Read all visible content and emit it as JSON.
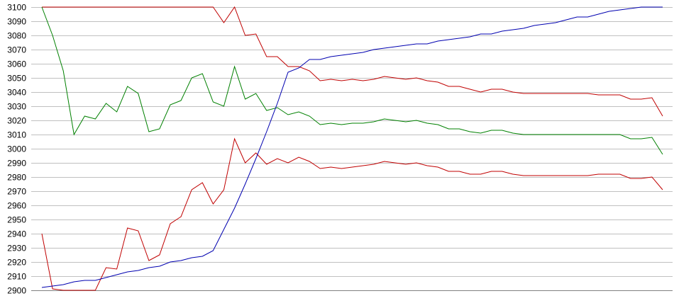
{
  "chart_data": {
    "type": "line",
    "title": "",
    "xlabel": "",
    "ylabel": "",
    "ylim": [
      2900,
      3100
    ],
    "yticks": [
      2900,
      2910,
      2920,
      2930,
      2940,
      2950,
      2960,
      2970,
      2980,
      2990,
      3000,
      3010,
      3020,
      3030,
      3040,
      3050,
      3060,
      3070,
      3080,
      3090,
      3100
    ],
    "grid": true,
    "legend": "none",
    "x": [
      0,
      1,
      2,
      3,
      4,
      5,
      6,
      7,
      8,
      9,
      10,
      11,
      12,
      13,
      14,
      15,
      16,
      17,
      18,
      19,
      20,
      21,
      22,
      23,
      24,
      25,
      26,
      27,
      28,
      29,
      30,
      31,
      32,
      33,
      34,
      35,
      36,
      37,
      38,
      39,
      40,
      41,
      42,
      43,
      44,
      45,
      46,
      47,
      48,
      49,
      50,
      51,
      52,
      53,
      54,
      55,
      56,
      57,
      58
    ],
    "series": [
      {
        "color": "#c00000",
        "values": [
          3100,
          3100,
          3100,
          3100,
          3100,
          3100,
          3100,
          3100,
          3100,
          3100,
          3100,
          3100,
          3100,
          3100,
          3100,
          3100,
          3100,
          3089,
          3100,
          3080,
          3081,
          3065,
          3065,
          3058,
          3058,
          3055,
          3048,
          3049,
          3048,
          3049,
          3048,
          3049,
          3051,
          3050,
          3049,
          3050,
          3048,
          3047,
          3044,
          3044,
          3042,
          3040,
          3042,
          3042,
          3040,
          3039,
          3039,
          3039,
          3039,
          3039,
          3039,
          3039,
          3038,
          3038,
          3038,
          3035,
          3035,
          3036,
          3023
        ]
      },
      {
        "color": "#008000",
        "values": [
          3100,
          3080,
          3055,
          3010,
          3023,
          3021,
          3032,
          3026,
          3044,
          3039,
          3012,
          3014,
          3031,
          3034,
          3050,
          3053,
          3033,
          3030,
          3058,
          3035,
          3039,
          3027,
          3029,
          3024,
          3026,
          3023,
          3017,
          3018,
          3017,
          3018,
          3018,
          3019,
          3021,
          3020,
          3019,
          3020,
          3018,
          3017,
          3014,
          3014,
          3012,
          3011,
          3013,
          3013,
          3011,
          3010,
          3010,
          3010,
          3010,
          3010,
          3010,
          3010,
          3010,
          3010,
          3010,
          3007,
          3007,
          3008,
          2996
        ]
      },
      {
        "color": "#c00000",
        "values": [
          2940,
          2901,
          2900,
          2900,
          2900,
          2900,
          2916,
          2915,
          2944,
          2942,
          2921,
          2925,
          2947,
          2952,
          2971,
          2976,
          2961,
          2971,
          3007,
          2990,
          2997,
          2989,
          2993,
          2990,
          2994,
          2991,
          2986,
          2987,
          2986,
          2987,
          2988,
          2989,
          2991,
          2990,
          2989,
          2990,
          2988,
          2987,
          2984,
          2984,
          2982,
          2982,
          2984,
          2984,
          2982,
          2981,
          2981,
          2981,
          2981,
          2981,
          2981,
          2981,
          2982,
          2982,
          2982,
          2979,
          2979,
          2980,
          2971
        ]
      },
      {
        "color": "#0000b0",
        "values": [
          2902,
          2903,
          2904,
          2906,
          2907,
          2907,
          2909,
          2911,
          2913,
          2914,
          2916,
          2917,
          2920,
          2921,
          2923,
          2924,
          2928,
          2943,
          2958,
          2975,
          2993,
          3012,
          3032,
          3054,
          3057,
          3063,
          3063,
          3065,
          3066,
          3067,
          3068,
          3070,
          3071,
          3072,
          3073,
          3074,
          3074,
          3076,
          3077,
          3078,
          3079,
          3081,
          3081,
          3083,
          3084,
          3085,
          3087,
          3088,
          3089,
          3091,
          3093,
          3093,
          3095,
          3097,
          3098,
          3099,
          3100,
          3100,
          3100
        ]
      }
    ]
  }
}
